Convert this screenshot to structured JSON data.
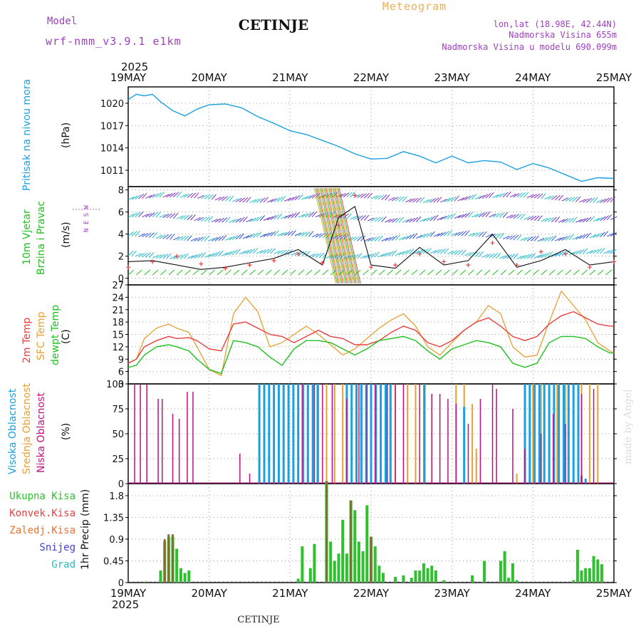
{
  "header": {
    "model_label": "Model",
    "model_name": "wrf-nmm_v3.9.1 e1km",
    "title": "CETINJE",
    "meteogram": "Meteogram",
    "lonlat": "lon,lat (18.98E, 42.44N)",
    "elev": "Nadmorska Visina 655m",
    "elev_model": "Nadmorska Visina u modelu 690.099m",
    "year_top": "2025",
    "year_bottom": "2025",
    "footer": "CETINJE",
    "watermark": "made by Angel"
  },
  "colors": {
    "pressure": "#1ea0e0",
    "vis_obl": "#1aa0e0",
    "sred_obl": "#e8a030",
    "nis_obl": "#c01080",
    "temp2m": "#e84040",
    "sfc": "#e8a030",
    "dewpt": "#20c020",
    "rain": "#2ec02e",
    "konv": "#e84040",
    "zaledj": "#f07030",
    "snijeg": "#4040e0",
    "grad": "#20c0c0",
    "wind_label": "#20c020",
    "purple": "#a040c0"
  },
  "chart_data": [
    {
      "type": "line",
      "panel": "pressure",
      "x_ticks": [
        "19MAY",
        "20MAY",
        "21MAY",
        "22MAY",
        "23MAY",
        "24MAY",
        "25MAY"
      ],
      "ylabel_series": "Pritisak na nivou mora",
      "ylabel_unit": "(hPa)",
      "y_ticks": [
        1011,
        1014,
        1017,
        1020
      ],
      "ylim": [
        1008.8,
        1022.2
      ],
      "grid": true,
      "series": [
        {
          "name": "Pritisak na nivou mora",
          "x": [
            0,
            0.1,
            0.2,
            0.3,
            0.4,
            0.55,
            0.7,
            0.85,
            1.0,
            1.2,
            1.4,
            1.6,
            1.8,
            2.0,
            2.2,
            2.4,
            2.6,
            2.8,
            3.0,
            3.2,
            3.4,
            3.6,
            3.8,
            4.0,
            4.2,
            4.4,
            4.6,
            4.8,
            5.0,
            5.2,
            5.4,
            5.6,
            5.8,
            6.0
          ],
          "y": [
            1020.5,
            1021.2,
            1021.0,
            1021.2,
            1020.2,
            1019.0,
            1018.3,
            1019.2,
            1019.8,
            1019.9,
            1019.4,
            1018.2,
            1017.3,
            1016.3,
            1015.8,
            1015.0,
            1014.2,
            1013.2,
            1012.5,
            1012.6,
            1013.5,
            1012.9,
            1012.0,
            1012.9,
            1012.0,
            1012.3,
            1012.1,
            1011.1,
            1011.9,
            1011.3,
            1010.4,
            1009.5,
            1010.0,
            1009.9
          ]
        }
      ]
    },
    {
      "type": "line",
      "panel": "wind",
      "ylabel_series": "10m Vjetar",
      "ylabel_series2": "Brzina i Pravac",
      "ylabel_unit": "(m/s)",
      "compass": "N E S W",
      "y_ticks": [
        0,
        2,
        4,
        6,
        8
      ],
      "ylim": [
        -0.6,
        8.3
      ],
      "grid": true,
      "series": [
        {
          "name": "wind speed",
          "x": [
            0,
            0.3,
            0.6,
            0.9,
            1.2,
            1.5,
            1.8,
            2.1,
            2.4,
            2.6,
            2.8,
            3.0,
            3.3,
            3.6,
            3.9,
            4.2,
            4.5,
            4.8,
            5.1,
            5.4,
            5.7,
            6.0
          ],
          "y": [
            1.5,
            1.6,
            1.2,
            0.8,
            1.0,
            1.4,
            1.8,
            2.6,
            1.2,
            5.5,
            6.5,
            1.2,
            0.9,
            2.8,
            1.2,
            1.6,
            4.0,
            1.0,
            1.6,
            2.6,
            1.2,
            1.5
          ]
        },
        {
          "name": "gust",
          "x": [
            0,
            0.3,
            0.6,
            0.9,
            1.2,
            1.5,
            1.8,
            2.1,
            2.4,
            2.6,
            2.8,
            3.0,
            3.3,
            3.6,
            3.9,
            4.2,
            4.5,
            4.8,
            5.1,
            5.4,
            5.7,
            6.0
          ],
          "y": [
            1.0,
            1.5,
            2.0,
            1.3,
            0.9,
            1.2,
            1.6,
            2.2,
            1.4,
            4.8,
            7.5,
            1.0,
            1.2,
            2.2,
            1.5,
            1.2,
            3.2,
            1.2,
            2.4,
            2.2,
            1.0,
            1.5
          ]
        }
      ]
    },
    {
      "type": "line",
      "panel": "temperature",
      "ylabel_series": "2m Temp",
      "ylabel_series2": "SFC Temp",
      "ylabel_series3": "dewpt Temp",
      "ylabel_unit": "(C)",
      "y_ticks": [
        3,
        6,
        9,
        12,
        15,
        18,
        21,
        24,
        27
      ],
      "ylim": [
        3,
        27
      ],
      "grid": true,
      "x": [
        0,
        0.1,
        0.2,
        0.35,
        0.5,
        0.6,
        0.75,
        0.85,
        1.0,
        1.15,
        1.3,
        1.45,
        1.6,
        1.75,
        1.9,
        2.05,
        2.2,
        2.35,
        2.5,
        2.65,
        2.8,
        2.95,
        3.1,
        3.25,
        3.4,
        3.55,
        3.7,
        3.85,
        4.0,
        4.15,
        4.3,
        4.45,
        4.6,
        4.75,
        4.9,
        5.05,
        5.2,
        5.35,
        5.5,
        5.65,
        5.8,
        5.95,
        6.0
      ],
      "series": [
        {
          "name": "2m Temp",
          "y": [
            8,
            9,
            12,
            13.5,
            14.5,
            14.0,
            14.2,
            13.5,
            11.5,
            11.0,
            17.5,
            18.0,
            16.5,
            15.0,
            14.5,
            13.0,
            14.5,
            16.0,
            14.5,
            14.0,
            12.5,
            12.5,
            13.5,
            15.5,
            17.0,
            16.0,
            13.0,
            12.0,
            13.5,
            16.0,
            18.0,
            19.0,
            17.0,
            14.5,
            13.5,
            14.5,
            17.5,
            19.5,
            20.5,
            19.0,
            17.5,
            17.0,
            17.0
          ]
        },
        {
          "name": "SFC Temp",
          "y": [
            8,
            9,
            14,
            16.5,
            17.5,
            16.5,
            15.5,
            12.0,
            6.5,
            5.0,
            20.0,
            24.0,
            20.5,
            12.0,
            13.0,
            15.0,
            17.0,
            15.0,
            12.5,
            10.0,
            11.5,
            14.0,
            16.5,
            18.5,
            20.0,
            17.0,
            12.0,
            10.0,
            13.0,
            16.0,
            18.0,
            22.0,
            20.0,
            12.0,
            9.5,
            10.0,
            18.0,
            25.5,
            22.0,
            18.5,
            13.0,
            11.0,
            10.5
          ]
        },
        {
          "name": "dewpt Temp",
          "y": [
            7,
            7.5,
            10,
            12,
            12.5,
            12.0,
            11.0,
            9.0,
            6.5,
            5.5,
            13.5,
            13.0,
            12.0,
            9.5,
            7.5,
            11.5,
            13.5,
            13.5,
            13.0,
            11.5,
            10.0,
            11.5,
            13.5,
            14.0,
            14.5,
            13.5,
            11.0,
            9.0,
            11.5,
            12.5,
            13.5,
            13.0,
            12.0,
            8.0,
            7.0,
            8.0,
            13.0,
            14.5,
            14.5,
            14.0,
            12.0,
            10.5,
            10.5
          ]
        }
      ]
    },
    {
      "type": "bar",
      "panel": "clouds",
      "ylabel_series": "Visoka Oblacnost",
      "ylabel_series2": "Srednja Oblacnost",
      "ylabel_series3": "Niska Oblacnost",
      "ylabel_unit": "(%)",
      "y_ticks": [
        0,
        25,
        50,
        75,
        100
      ],
      "ylim": [
        0,
        100
      ],
      "grid": true,
      "series": [
        {
          "name": "Niska Oblacnost",
          "x": [
            0.08,
            0.15,
            0.23,
            0.37,
            0.42,
            0.55,
            0.63,
            0.73,
            0.8,
            1.38,
            1.5,
            2.15,
            2.3,
            2.4,
            2.52,
            2.7,
            2.85,
            2.95,
            3.05,
            3.2,
            3.3,
            3.4,
            3.6,
            3.75,
            3.85,
            3.95,
            4.05,
            4.2,
            4.35,
            4.5,
            4.55,
            4.75,
            4.9,
            5.1,
            5.25,
            5.4,
            5.6,
            5.75
          ],
          "y": [
            100,
            100,
            100,
            85,
            85,
            70,
            65,
            92,
            92,
            30,
            10,
            100,
            100,
            100,
            100,
            85,
            100,
            100,
            100,
            100,
            100,
            100,
            100,
            90,
            90,
            85,
            80,
            60,
            85,
            100,
            95,
            75,
            35,
            50,
            70,
            60,
            90,
            95
          ]
        },
        {
          "name": "Srednja Oblacnost",
          "x": [
            2.35,
            2.45,
            2.55,
            2.65,
            3.3,
            3.45,
            3.55,
            3.65,
            4.05,
            4.15,
            4.25,
            4.3,
            4.8,
            4.9,
            5.0,
            5.1,
            5.2,
            5.3,
            5.4,
            5.5,
            5.6,
            5.7,
            5.8
          ],
          "y": [
            100,
            100,
            100,
            100,
            100,
            100,
            100,
            100,
            100,
            100,
            80,
            35,
            10,
            100,
            100,
            100,
            100,
            100,
            100,
            100,
            100,
            100,
            100
          ]
        },
        {
          "name": "Visoka Oblacnost",
          "x": [
            1.62,
            1.68,
            1.74,
            1.8,
            1.86,
            1.92,
            1.98,
            2.04,
            2.1,
            2.16,
            2.22,
            2.28,
            2.34,
            2.7,
            2.76,
            2.82,
            2.88,
            2.94,
            3.0,
            3.06,
            3.12,
            3.18,
            3.24,
            3.66,
            4.15,
            4.9,
            4.96,
            5.02,
            5.08,
            5.14,
            5.2,
            5.26,
            5.32,
            5.38,
            5.44,
            5.5,
            5.56,
            5.6,
            5.65
          ],
          "y": [
            100,
            100,
            100,
            100,
            100,
            100,
            100,
            100,
            100,
            100,
            100,
            100,
            100,
            100,
            100,
            100,
            100,
            100,
            100,
            100,
            100,
            100,
            100,
            100,
            77,
            100,
            100,
            100,
            100,
            100,
            100,
            100,
            100,
            100,
            100,
            100,
            100,
            8,
            5
          ]
        }
      ]
    },
    {
      "type": "bar",
      "panel": "precipitation",
      "legend": [
        "Ukupna Kisa",
        "Konvek.Kisa",
        "Zaledj.Kisa",
        "Snijeg",
        "Grad"
      ],
      "ylabel_series": "1hr Precip",
      "ylabel_unit": "(mm)",
      "y_ticks": [
        0,
        0.45,
        0.9,
        1.35,
        1.8
      ],
      "y_tick_labels": [
        "0",
        "0.45",
        "0.9",
        "1.35",
        "1.8"
      ],
      "ylim": [
        0,
        2.05
      ],
      "grid": true,
      "series": [
        {
          "name": "Ukupna Kisa",
          "x": [
            0.2,
            0.4,
            0.45,
            0.5,
            0.55,
            0.6,
            0.65,
            0.7,
            0.75,
            2.1,
            2.15,
            2.25,
            2.3,
            2.45,
            2.5,
            2.55,
            2.6,
            2.65,
            2.7,
            2.75,
            2.8,
            2.85,
            2.9,
            2.95,
            3.0,
            3.05,
            3.1,
            3.15,
            3.3,
            3.4,
            3.5,
            3.55,
            3.6,
            3.65,
            3.7,
            3.75,
            3.8,
            3.9,
            4.25,
            4.4,
            4.6,
            4.65,
            4.7,
            4.75,
            4.8,
            5.5,
            5.55,
            5.6,
            5.65,
            5.7,
            5.75,
            5.8,
            5.85
          ],
          "y": [
            0.02,
            0.25,
            0.85,
            0.95,
            0.95,
            0.7,
            0.3,
            0.2,
            0.25,
            0.08,
            0.75,
            0.3,
            0.8,
            2.1,
            0.85,
            0.45,
            0.6,
            1.3,
            0.6,
            1.7,
            1.5,
            0.85,
            0.65,
            1.6,
            0.95,
            0.75,
            0.35,
            0.2,
            0.12,
            0.15,
            0.1,
            0.25,
            0.25,
            0.4,
            0.3,
            0.35,
            0.25,
            0.05,
            0.15,
            0.45,
            0.45,
            0.65,
            0.1,
            0.4,
            0.05,
            0.05,
            0.68,
            0.25,
            0.3,
            0.3,
            0.55,
            0.48,
            0.38
          ]
        },
        {
          "name": "Konvek.Kisa",
          "x": [
            0.45,
            0.5,
            0.55,
            2.45,
            2.75,
            3.0
          ],
          "y": [
            0.9,
            1.0,
            1.0,
            2.1,
            1.7,
            0.95
          ]
        }
      ]
    }
  ]
}
